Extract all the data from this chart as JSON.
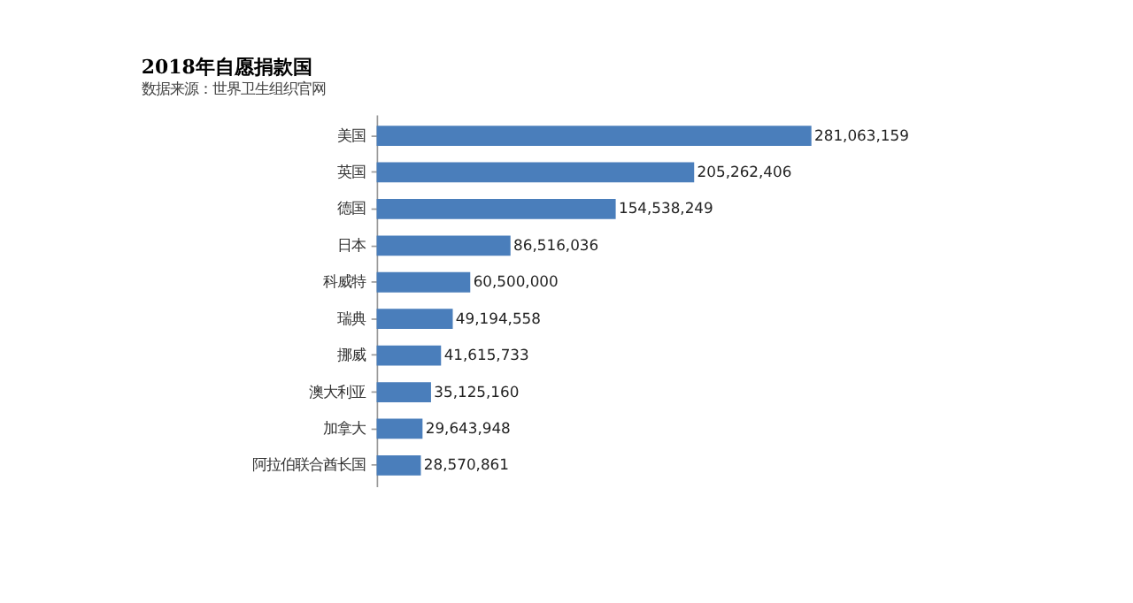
{
  "chart_data": {
    "type": "bar",
    "orientation": "horizontal",
    "title": "2018年自愿捐款国",
    "subtitle": "数据来源：世界卫生组织官网",
    "categories": [
      "美国",
      "英国",
      "德国",
      "日本",
      "科威特",
      "瑞典",
      "挪威",
      "澳大利亚",
      "加拿大",
      "阿拉伯联合酋长国"
    ],
    "values": [
      281063159,
      205262406,
      154538249,
      86516036,
      60500000,
      49194558,
      41615733,
      35125160,
      29643948,
      28570861
    ],
    "value_labels": [
      "281,063,159",
      "205,262,406",
      "154,538,249",
      "86,516,036",
      "60,500,000",
      "49,194,558",
      "41,615,733",
      "35,125,160",
      "29,643,948",
      "28,570,861"
    ],
    "color": "#4a7ebb",
    "tick_labels": "y"
  }
}
